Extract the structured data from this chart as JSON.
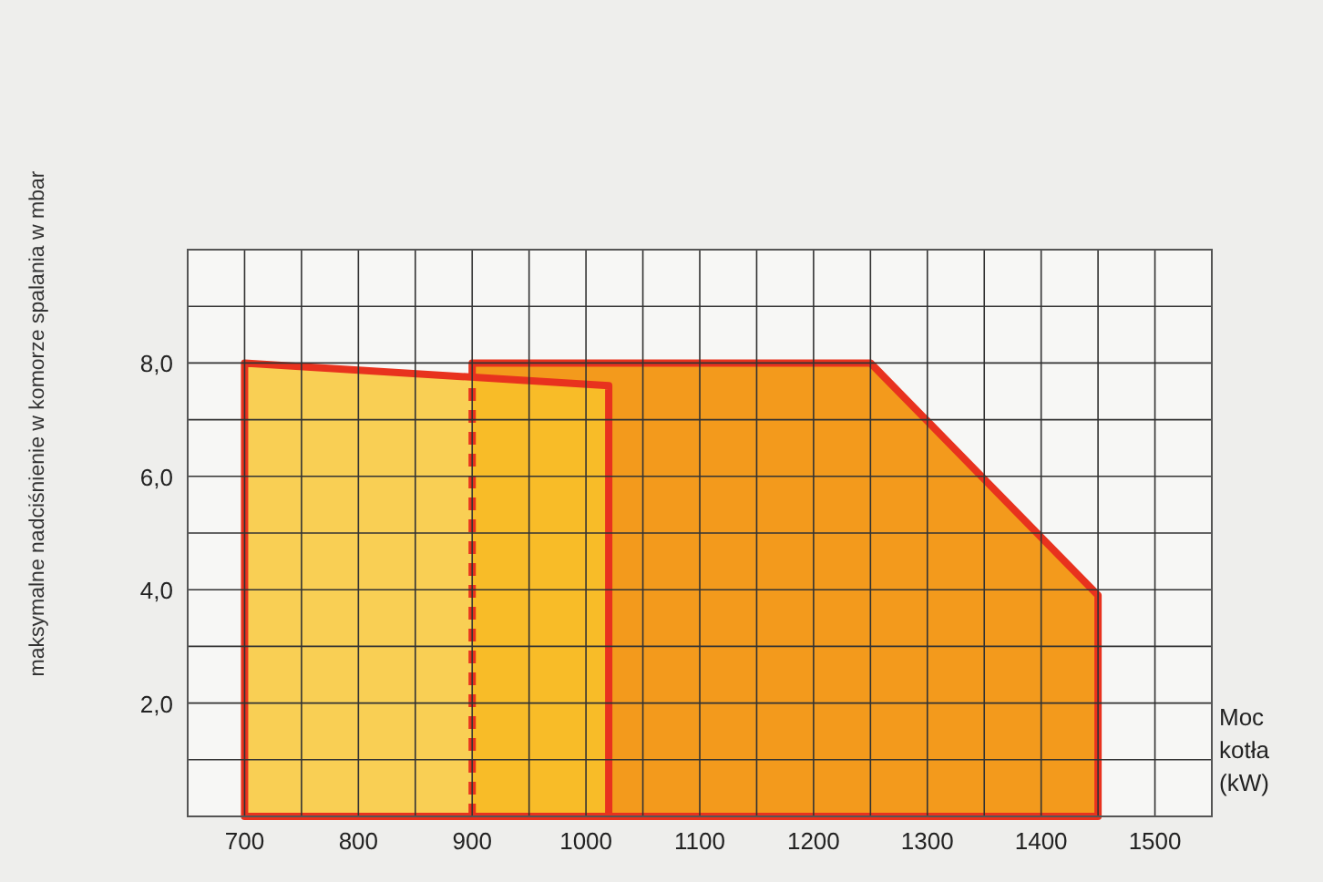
{
  "chart_data": {
    "type": "area",
    "ylabel": "maksymalne nadciśnienie w komorze spalania w mbar",
    "xlabel": "Moc kotła (kW)",
    "series": [
      {
        "color": "#f9c42c",
        "x": [
          700,
          1020
        ],
        "values": [
          8.0,
          7.6
        ]
      },
      {
        "color": "#f39a1c",
        "x": [
          900,
          1250,
          1450
        ],
        "values": [
          8.0,
          8.0,
          3.9
        ]
      }
    ],
    "xlim": [
      650,
      1550
    ],
    "xticks": [
      {
        "value": 650,
        "label": null
      },
      700,
      {
        "value": 750,
        "label": null
      },
      800,
      {
        "value": 850,
        "label": null
      },
      900,
      {
        "value": 950,
        "label": null
      },
      1000,
      {
        "value": 1050,
        "label": null
      },
      1100,
      {
        "value": 1150,
        "label": null
      },
      1200,
      {
        "value": 1250,
        "label": null
      },
      1300,
      {
        "value": 1350,
        "label": null
      },
      1400,
      {
        "value": 1450,
        "label": null
      },
      1500,
      {
        "value": 1550,
        "label": null
      }
    ],
    "ylim": [
      0,
      10
    ],
    "yticks": [
      {
        "value": 0,
        "label": null
      },
      {
        "value": 1,
        "label": null
      },
      {
        "value": 2,
        "label": "2,0"
      },
      {
        "value": 3,
        "label": null
      },
      {
        "value": 4,
        "label": "4,0"
      },
      {
        "value": 5,
        "label": null
      },
      {
        "value": 6,
        "label": "6,0"
      },
      {
        "value": 7,
        "label": null
      },
      {
        "value": 8,
        "label": "8,0"
      },
      {
        "value": 9,
        "label": null
      },
      {
        "value": 10,
        "label": null
      }
    ],
    "grid": true
  }
}
